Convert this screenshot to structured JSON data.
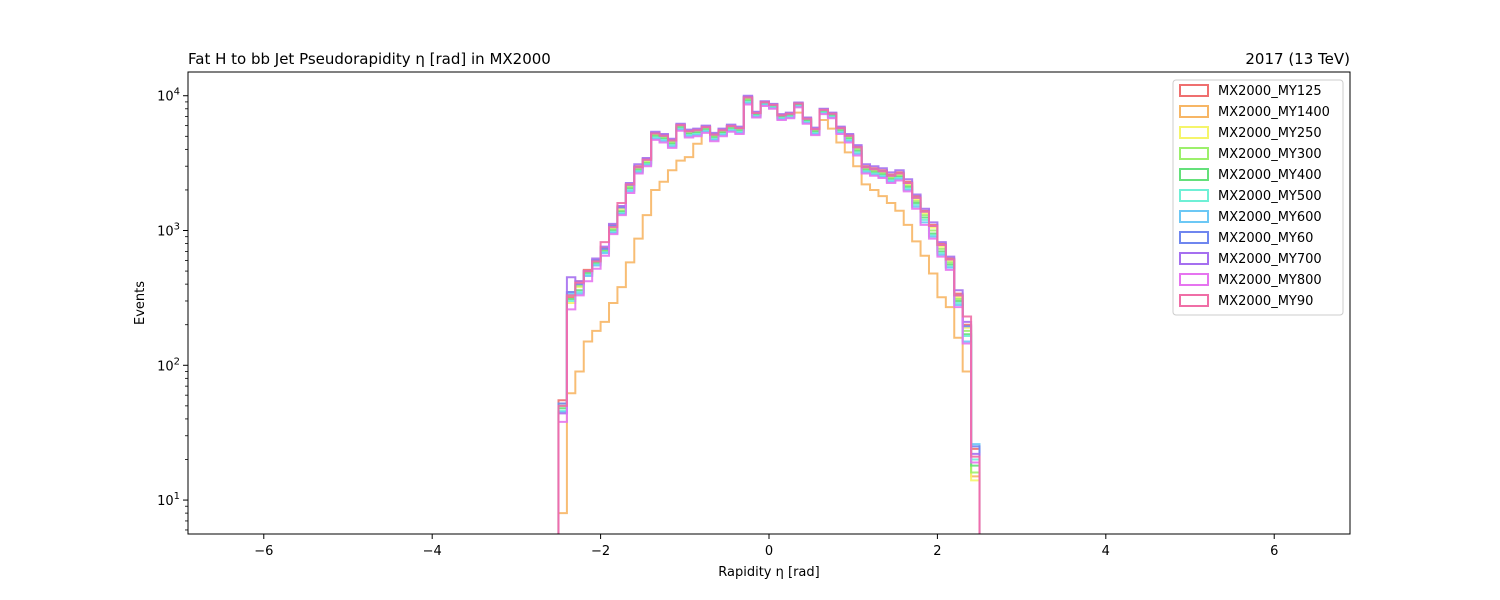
{
  "chart_data": {
    "type": "line",
    "style": "step-histogram",
    "title": "Fat H to bb Jet Pseudorapidity η [rad] in MX2000",
    "title_right": "2017 (13 TeV)",
    "xlabel": "Rapidity η [rad]",
    "ylabel": "Events",
    "xlim": [
      -6.9,
      6.9
    ],
    "ylim": [
      5.6,
      15000
    ],
    "yscale": "log",
    "xticks": [
      -6,
      -4,
      -2,
      0,
      2,
      4,
      6
    ],
    "xtick_labels": [
      "−6",
      "−4",
      "−2",
      "0",
      "2",
      "4",
      "6"
    ],
    "yticks": [
      10,
      100,
      1000,
      10000
    ],
    "ytick_base": "10",
    "ytick_exponents": [
      "1",
      "2",
      "3",
      "4"
    ],
    "legend_position": "top-right",
    "x": [
      -2.45,
      -2.35,
      -2.25,
      -2.15,
      -2.05,
      -1.95,
      -1.85,
      -1.75,
      -1.65,
      -1.55,
      -1.45,
      -1.35,
      -1.25,
      -1.15,
      -1.05,
      -0.95,
      -0.85,
      -0.75,
      -0.65,
      -0.55,
      -0.45,
      -0.35,
      -0.25,
      -0.15,
      -0.05,
      0.05,
      0.15,
      0.25,
      0.35,
      0.45,
      0.55,
      0.65,
      0.75,
      0.85,
      0.95,
      1.05,
      1.15,
      1.25,
      1.35,
      1.45,
      1.55,
      1.65,
      1.75,
      1.85,
      1.95,
      2.05,
      2.15,
      2.25,
      2.35,
      2.45
    ],
    "series": [
      {
        "name": "MX2000_MY125",
        "color": "#ef6f6f",
        "values": [
          55,
          320,
          420,
          510,
          600,
          740,
          1100,
          1500,
          2200,
          3000,
          3400,
          5300,
          5100,
          4700,
          6100,
          5500,
          5600,
          5900,
          5200,
          5600,
          6000,
          5800,
          9800,
          7500,
          9000,
          8600,
          7200,
          7400,
          8800,
          6800,
          5700,
          7900,
          7400,
          5800,
          5100,
          4200,
          3000,
          2900,
          2800,
          2600,
          2700,
          2300,
          1800,
          1400,
          1100,
          800,
          620,
          340,
          200,
          24
        ]
      },
      {
        "name": "MX2000_MY1400",
        "color": "#f7b665",
        "values": [
          8,
          62,
          90,
          150,
          180,
          210,
          290,
          380,
          580,
          870,
          1300,
          2000,
          2300,
          2800,
          3300,
          3500,
          4400,
          5500,
          5000,
          5400,
          5700,
          5800,
          9500,
          7300,
          8700,
          8100,
          6800,
          7000,
          7500,
          6600,
          5400,
          6600,
          5700,
          4500,
          3800,
          3000,
          2200,
          2000,
          1800,
          1600,
          1400,
          1100,
          830,
          650,
          480,
          320,
          270,
          160,
          90,
          15
        ]
      },
      {
        "name": "MX2000_MY250",
        "color": "#f5f56a",
        "values": [
          52,
          290,
          380,
          500,
          590,
          720,
          1050,
          1450,
          2150,
          2900,
          3300,
          5200,
          5000,
          4600,
          6000,
          5400,
          5500,
          5800,
          5100,
          5500,
          5900,
          5700,
          9600,
          7400,
          8900,
          8500,
          7100,
          7300,
          8700,
          6700,
          5600,
          7800,
          7300,
          5700,
          5000,
          4100,
          2900,
          2800,
          2700,
          2500,
          2600,
          2200,
          1700,
          1350,
          1050,
          760,
          600,
          320,
          190,
          14
        ]
      },
      {
        "name": "MX2000_MY300",
        "color": "#9cf06b",
        "values": [
          50,
          330,
          390,
          490,
          580,
          710,
          1020,
          1400,
          2100,
          2850,
          3200,
          5100,
          4900,
          4500,
          5900,
          5300,
          5400,
          5700,
          5000,
          5400,
          5800,
          5600,
          9400,
          7300,
          8800,
          8400,
          7000,
          7200,
          8600,
          6600,
          5500,
          7700,
          7200,
          5600,
          4900,
          4000,
          2850,
          2750,
          2650,
          2450,
          2550,
          2150,
          1650,
          1300,
          1000,
          730,
          580,
          310,
          180,
          16
        ]
      },
      {
        "name": "MX2000_MY400",
        "color": "#64e07a",
        "values": [
          48,
          310,
          360,
          480,
          570,
          700,
          1000,
          1380,
          2050,
          2800,
          3150,
          5000,
          4800,
          4400,
          5800,
          5200,
          5300,
          5600,
          4900,
          5300,
          5700,
          5500,
          9200,
          7200,
          8700,
          8300,
          6900,
          7100,
          8500,
          6500,
          5400,
          7600,
          7100,
          5500,
          4800,
          3900,
          2800,
          2700,
          2600,
          2400,
          2500,
          2100,
          1600,
          1250,
          950,
          700,
          560,
          300,
          170,
          18
        ]
      },
      {
        "name": "MX2000_MY500",
        "color": "#6ff0d6",
        "values": [
          46,
          300,
          350,
          470,
          560,
          690,
          980,
          1350,
          2000,
          2750,
          3100,
          4900,
          4700,
          4300,
          5700,
          5100,
          5200,
          5500,
          4800,
          5200,
          5600,
          5400,
          9000,
          7100,
          8600,
          8200,
          6800,
          7000,
          8400,
          6400,
          5300,
          7500,
          7000,
          5400,
          4700,
          3800,
          2750,
          2650,
          2550,
          2350,
          2450,
          2050,
          1550,
          1200,
          920,
          680,
          540,
          290,
          165,
          20
        ]
      },
      {
        "name": "MX2000_MY600",
        "color": "#6cc8f5",
        "values": [
          45,
          340,
          340,
          460,
          550,
          680,
          960,
          1330,
          1950,
          2700,
          3050,
          4800,
          4600,
          4200,
          5600,
          5000,
          5100,
          5400,
          4700,
          5100,
          5500,
          5300,
          8800,
          7000,
          8500,
          8100,
          6700,
          6900,
          8300,
          6300,
          5200,
          7400,
          6900,
          5300,
          4600,
          3700,
          2700,
          2600,
          2500,
          2300,
          2400,
          2000,
          1500,
          1150,
          900,
          660,
          530,
          280,
          150,
          26
        ]
      },
      {
        "name": "MX2000_MY60",
        "color": "#6f86ef",
        "values": [
          52,
          350,
          400,
          500,
          600,
          730,
          1080,
          1480,
          2180,
          2950,
          3350,
          5250,
          5050,
          4650,
          6050,
          5450,
          5550,
          5850,
          5150,
          5550,
          5950,
          5750,
          9700,
          7450,
          8950,
          8550,
          7150,
          7350,
          8750,
          6750,
          5650,
          7850,
          7350,
          5750,
          5050,
          4150,
          2950,
          2850,
          2750,
          2550,
          2650,
          2250,
          1750,
          1380,
          1080,
          780,
          610,
          330,
          195,
          25
        ]
      },
      {
        "name": "MX2000_MY700",
        "color": "#a56ff0",
        "values": [
          44,
          450,
          420,
          500,
          620,
          760,
          1120,
          1520,
          2250,
          3100,
          3450,
          5400,
          5200,
          4800,
          6200,
          5600,
          5700,
          6000,
          5300,
          5700,
          6100,
          5900,
          10000,
          7600,
          9100,
          8700,
          7300,
          7500,
          8900,
          6900,
          5800,
          8000,
          7500,
          5900,
          5200,
          4300,
          3100,
          3000,
          2900,
          2700,
          2800,
          2400,
          1850,
          1450,
          1150,
          820,
          640,
          360,
          210,
          22
        ]
      },
      {
        "name": "MX2000_MY800",
        "color": "#e674f0",
        "values": [
          38,
          260,
          330,
          420,
          520,
          650,
          940,
          1300,
          1900,
          2650,
          3000,
          4700,
          4500,
          4100,
          5500,
          4900,
          5000,
          5300,
          4600,
          5000,
          5400,
          5200,
          8600,
          6900,
          8400,
          8000,
          6600,
          6800,
          8200,
          6200,
          5100,
          7300,
          6800,
          5200,
          4500,
          3600,
          2650,
          2550,
          2450,
          2250,
          2350,
          1950,
          1450,
          1100,
          870,
          640,
          510,
          270,
          145,
          19
        ]
      },
      {
        "name": "MX2000_MY90",
        "color": "#f06ea6",
        "values": [
          50,
          330,
          410,
          500,
          590,
          820,
          1060,
          1600,
          2200,
          2950,
          3350,
          5250,
          5050,
          4650,
          6050,
          5450,
          5550,
          5850,
          5150,
          5550,
          5950,
          5750,
          9700,
          7450,
          8950,
          8550,
          7150,
          7350,
          8750,
          6750,
          5650,
          7850,
          7350,
          5750,
          5050,
          4150,
          2950,
          2850,
          2750,
          2550,
          2650,
          2250,
          1750,
          1380,
          1080,
          780,
          610,
          330,
          230,
          21
        ]
      }
    ]
  }
}
